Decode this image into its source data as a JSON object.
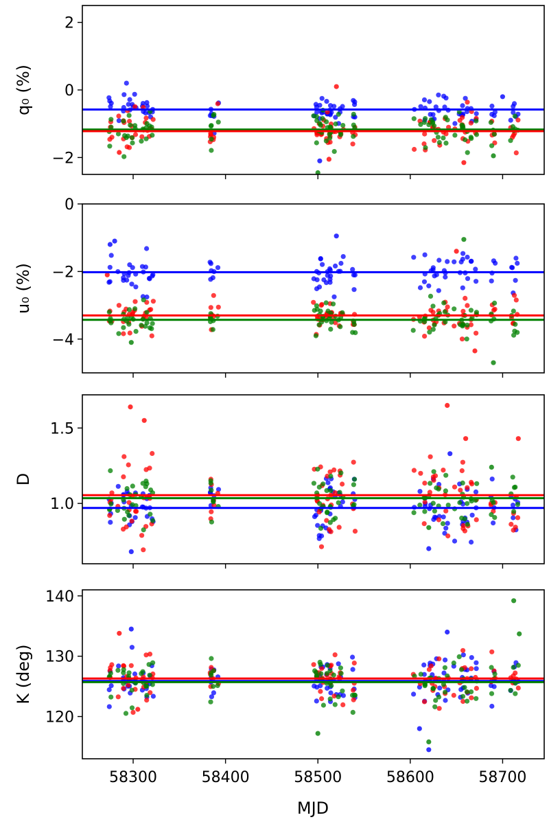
{
  "figure": {
    "xlabel": "MJD",
    "xlim": [
      58245,
      58745
    ],
    "xticks": [
      58300,
      58400,
      58500,
      58600,
      58700
    ],
    "colors": {
      "red": "#ff0000",
      "green": "#008000",
      "blue": "#0000ff"
    }
  },
  "chart_data": [
    {
      "type": "scatter",
      "ylabel": "q₀ (%)",
      "ylim": [
        -2.5,
        2.5
      ],
      "yticks": [
        -2,
        0,
        2
      ],
      "series": [
        {
          "name": "blue",
          "color": "#0000ff",
          "mean": -0.58,
          "spread": 0.22,
          "outliers": [
            [
              58502,
              -2.1
            ],
            [
              58540,
              -0.8
            ],
            [
              58700,
              -0.2
            ]
          ]
        },
        {
          "name": "red",
          "color": "#ff0000",
          "mean": -1.2,
          "spread": 0.3,
          "outliers": [
            [
              58520,
              0.1
            ],
            [
              58512,
              -2.05
            ],
            [
              58658,
              -2.15
            ],
            [
              58285,
              -1.85
            ]
          ]
        },
        {
          "name": "green",
          "color": "#008000",
          "mean": -1.18,
          "spread": 0.3,
          "outliers": [
            [
              58500,
              -2.45
            ],
            [
              58690,
              -1.95
            ]
          ]
        }
      ],
      "hlines": [
        {
          "series": "blue",
          "y": -0.58
        },
        {
          "series": "green",
          "y": -1.17
        },
        {
          "series": "red",
          "y": -1.22
        }
      ]
    },
    {
      "type": "scatter",
      "ylabel": "u₀ (%)",
      "ylim": [
        -5,
        0
      ],
      "yticks": [
        -4,
        -2,
        0
      ],
      "series": [
        {
          "name": "blue",
          "color": "#0000ff",
          "mean": -2.0,
          "spread": 0.3,
          "outliers": [
            [
              58275,
              -1.2
            ],
            [
              58280,
              -1.1
            ],
            [
              58520,
              -0.95
            ]
          ]
        },
        {
          "name": "red",
          "color": "#ff0000",
          "mean": -3.3,
          "spread": 0.25,
          "outliers": [
            [
              58272,
              -2.1
            ],
            [
              58670,
              -4.35
            ],
            [
              58650,
              -1.4
            ]
          ]
        },
        {
          "name": "green",
          "color": "#008000",
          "mean": -3.45,
          "spread": 0.25,
          "outliers": [
            [
              58658,
              -1.05
            ],
            [
              58690,
              -4.7
            ],
            [
              58298,
              -4.1
            ]
          ]
        }
      ],
      "hlines": [
        {
          "series": "blue",
          "y": -2.02
        },
        {
          "series": "red",
          "y": -3.3
        },
        {
          "series": "green",
          "y": -3.43
        }
      ]
    },
    {
      "type": "scatter",
      "ylabel": "D",
      "ylim": [
        0.6,
        1.72
      ],
      "yticks": [
        1.0,
        1.5
      ],
      "series": [
        {
          "name": "blue",
          "color": "#0000ff",
          "mean": 0.97,
          "spread": 0.1,
          "outliers": [
            [
              58298,
              0.68
            ],
            [
              58620,
              0.7
            ],
            [
              58643,
              1.33
            ]
          ]
        },
        {
          "name": "red",
          "color": "#ff0000",
          "mean": 1.05,
          "spread": 0.14,
          "outliers": [
            [
              58297,
              1.64
            ],
            [
              58640,
              1.65
            ],
            [
              58312,
              1.55
            ],
            [
              58660,
              1.43
            ],
            [
              58717,
              1.43
            ]
          ]
        },
        {
          "name": "green",
          "color": "#008000",
          "mean": 1.03,
          "spread": 0.1,
          "outliers": [
            [
              58688,
              1.24
            ],
            [
              58620,
              0.84
            ]
          ]
        }
      ],
      "hlines": [
        {
          "series": "red",
          "y": 1.055
        },
        {
          "series": "green",
          "y": 1.035
        },
        {
          "series": "blue",
          "y": 0.97
        }
      ]
    },
    {
      "type": "scatter",
      "ylabel": "K (deg)",
      "ylim": [
        113,
        141
      ],
      "yticks": [
        120,
        130,
        140
      ],
      "series": [
        {
          "name": "blue",
          "color": "#0000ff",
          "mean": 126.0,
          "spread": 2.2,
          "outliers": [
            [
              58620,
              114.5
            ],
            [
              58610,
              118
            ],
            [
              58298,
              134.5
            ],
            [
              58640,
              134
            ]
          ]
        },
        {
          "name": "red",
          "color": "#ff0000",
          "mean": 126.3,
          "spread": 2.0,
          "outliers": [
            [
              58285,
              133.8
            ],
            [
              58305,
              121.2
            ]
          ]
        },
        {
          "name": "green",
          "color": "#008000",
          "mean": 125.8,
          "spread": 2.0,
          "outliers": [
            [
              58712,
              139.2
            ],
            [
              58718,
              133.7
            ],
            [
              58500,
              117.2
            ],
            [
              58620,
              115.8
            ]
          ]
        }
      ],
      "hlines": [
        {
          "series": "red",
          "y": 126.3
        },
        {
          "series": "blue",
          "y": 125.9
        },
        {
          "series": "green",
          "y": 125.7
        }
      ]
    }
  ]
}
